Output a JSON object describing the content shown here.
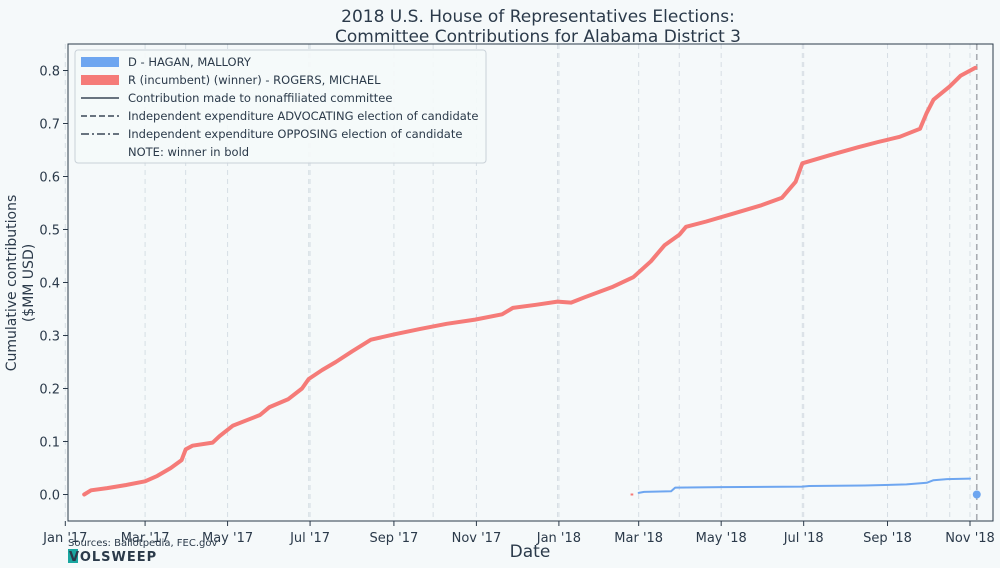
{
  "chart_data": {
    "type": "line",
    "title": [
      "2018 U.S. House of Representatives Elections:",
      "Committee Contributions for Alabama District 3"
    ],
    "xlabel": "Date",
    "ylabel": [
      "Cumulative contributions",
      "($MM USD)"
    ],
    "ylim": [
      -0.05,
      0.85
    ],
    "xlim": [
      "2017-01-03",
      "2018-11-18"
    ],
    "yticks": [
      0.0,
      0.1,
      0.2,
      0.3,
      0.4,
      0.5,
      0.6,
      0.7,
      0.8
    ],
    "ytick_labels": [
      "0.0",
      "0.1",
      "0.2",
      "0.3",
      "0.4",
      "0.5",
      "0.6",
      "0.7",
      "0.8"
    ],
    "xticks": [
      {
        "date": "2017-01-01",
        "label": "Jan '17"
      },
      {
        "date": "2017-03-01",
        "label": "Mar '17"
      },
      {
        "date": "2017-05-01",
        "label": "May '17"
      },
      {
        "date": "2017-07-01",
        "label": "Jul '17"
      },
      {
        "date": "2017-09-01",
        "label": "Sep '17"
      },
      {
        "date": "2017-11-01",
        "label": "Nov '17"
      },
      {
        "date": "2018-01-01",
        "label": "Jan '18"
      },
      {
        "date": "2018-03-01",
        "label": "Mar '18"
      },
      {
        "date": "2018-05-01",
        "label": "May '18"
      },
      {
        "date": "2018-07-01",
        "label": "Jul '18"
      },
      {
        "date": "2018-09-01",
        "label": "Sep '18"
      },
      {
        "date": "2018-11-01",
        "label": "Nov '18"
      }
    ],
    "grid": "vertical dashed",
    "legend_position": "top-left",
    "vertical_markers": [
      "2017-03-31",
      "2017-06-30",
      "2017-09-30",
      "2017-12-31",
      "2018-03-31",
      "2018-06-30",
      "2018-09-30",
      "2018-10-17",
      "2018-11-06"
    ],
    "election_line": "2018-11-06",
    "series": [
      {
        "name": "D - HAGAN, MALLORY",
        "color": "#6ea6f0",
        "style": "solid",
        "points": [
          [
            "2018-03-01",
            0.003
          ],
          [
            "2018-03-05",
            0.005
          ],
          [
            "2018-03-25",
            0.006
          ],
          [
            "2018-03-28",
            0.013
          ],
          [
            "2018-05-01",
            0.014
          ],
          [
            "2018-06-30",
            0.015
          ],
          [
            "2018-07-05",
            0.016
          ],
          [
            "2018-08-15",
            0.017
          ],
          [
            "2018-09-15",
            0.019
          ],
          [
            "2018-09-30",
            0.022
          ],
          [
            "2018-10-05",
            0.027
          ],
          [
            "2018-10-15",
            0.029
          ],
          [
            "2018-11-01",
            0.03
          ]
        ],
        "end_marker": [
          "2018-11-06",
          0.0
        ]
      },
      {
        "name": "R (incumbent) (winner) - ROGERS, MICHAEL",
        "color": "#f57b78",
        "style": "solid",
        "points": [
          [
            "2017-01-15",
            0.0
          ],
          [
            "2017-01-20",
            0.008
          ],
          [
            "2017-02-01",
            0.012
          ],
          [
            "2017-02-15",
            0.018
          ],
          [
            "2017-03-01",
            0.025
          ],
          [
            "2017-03-10",
            0.035
          ],
          [
            "2017-03-20",
            0.05
          ],
          [
            "2017-03-28",
            0.065
          ],
          [
            "2017-03-31",
            0.085
          ],
          [
            "2017-04-05",
            0.092
          ],
          [
            "2017-04-20",
            0.098
          ],
          [
            "2017-04-25",
            0.11
          ],
          [
            "2017-05-05",
            0.13
          ],
          [
            "2017-05-15",
            0.14
          ],
          [
            "2017-05-25",
            0.15
          ],
          [
            "2017-06-01",
            0.165
          ],
          [
            "2017-06-15",
            0.18
          ],
          [
            "2017-06-25",
            0.2
          ],
          [
            "2017-06-30",
            0.218
          ],
          [
            "2017-07-10",
            0.235
          ],
          [
            "2017-07-20",
            0.25
          ],
          [
            "2017-08-01",
            0.27
          ],
          [
            "2017-08-15",
            0.292
          ],
          [
            "2017-09-01",
            0.302
          ],
          [
            "2017-09-20",
            0.312
          ],
          [
            "2017-10-10",
            0.322
          ],
          [
            "2017-10-31",
            0.33
          ],
          [
            "2017-11-20",
            0.34
          ],
          [
            "2017-11-28",
            0.352
          ],
          [
            "2017-12-15",
            0.358
          ],
          [
            "2017-12-31",
            0.364
          ],
          [
            "2018-01-10",
            0.362
          ],
          [
            "2018-01-20",
            0.372
          ],
          [
            "2018-02-10",
            0.392
          ],
          [
            "2018-02-25",
            0.41
          ],
          [
            "2018-03-10",
            0.44
          ],
          [
            "2018-03-20",
            0.47
          ],
          [
            "2018-03-31",
            0.49
          ],
          [
            "2018-04-05",
            0.505
          ],
          [
            "2018-04-20",
            0.515
          ],
          [
            "2018-05-10",
            0.53
          ],
          [
            "2018-05-30",
            0.545
          ],
          [
            "2018-06-15",
            0.56
          ],
          [
            "2018-06-25",
            0.59
          ],
          [
            "2018-06-30",
            0.625
          ],
          [
            "2018-07-20",
            0.64
          ],
          [
            "2018-08-10",
            0.655
          ],
          [
            "2018-08-25",
            0.665
          ],
          [
            "2018-09-10",
            0.675
          ],
          [
            "2018-09-25",
            0.69
          ],
          [
            "2018-09-30",
            0.72
          ],
          [
            "2018-10-05",
            0.745
          ],
          [
            "2018-10-17",
            0.77
          ],
          [
            "2018-10-25",
            0.79
          ],
          [
            "2018-11-05",
            0.805
          ]
        ],
        "stray_segment": [
          [
            "2018-02-23",
            0.0
          ],
          [
            "2018-02-25",
            0.0
          ]
        ]
      }
    ],
    "legend": {
      "entries": [
        {
          "label": "D - HAGAN, MALLORY",
          "kind": "patch",
          "color": "#6ea6f0"
        },
        {
          "label": "R (incumbent) (winner) - ROGERS, MICHAEL",
          "kind": "patch",
          "color": "#f57b78"
        },
        {
          "label": "Contribution made to nonaffiliated committee",
          "kind": "solid"
        },
        {
          "label": "Independent expenditure ADVOCATING election of candidate",
          "kind": "dashed"
        },
        {
          "label": "Independent expenditure OPPOSING election of candidate",
          "kind": "dashdot"
        },
        {
          "label": "NOTE: winner in bold",
          "kind": "none"
        }
      ]
    }
  },
  "footer": {
    "sources": "Sources: Ballotpedia, FEC.gov",
    "brand": "VOLSWEEP"
  },
  "colors": {
    "background": "#f5f9fa",
    "axis": "#2b3a4a",
    "grid": "#d6dee4",
    "election_line": "#a9adb3"
  }
}
